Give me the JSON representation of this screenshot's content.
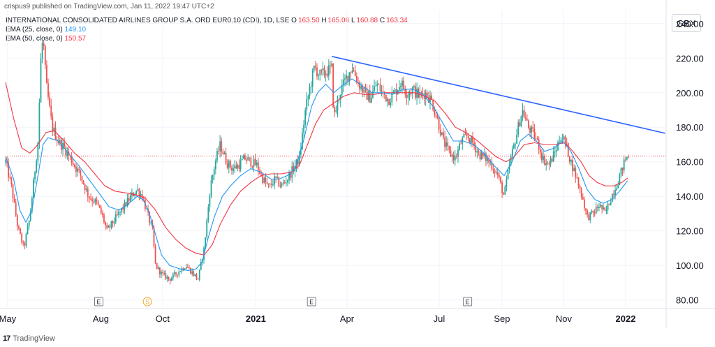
{
  "header": {
    "topline": "crispus9 published on TradingView.com, Jan 11, 2022 19:47 UTC+2",
    "instrument": "INTERNATIONAL CONSOLIDATED AIRLINES GROUP S.A. ORD EUR0.10 (CDI), 1D, LSE",
    "ohlc": {
      "o_label": "O",
      "o": "163.50",
      "h_label": "H",
      "h": "165.06",
      "l_label": "L",
      "l": "160.88",
      "c_label": "C",
      "c": "163.34"
    },
    "ema25_label": "EMA (25, close, 0)",
    "ema25_value": "149.10",
    "ema50_label": "EMA (50, close, 0)",
    "ema50_value": "150.57",
    "currency": "GBX"
  },
  "footer": {
    "brand": "TradingView",
    "logo": "17"
  },
  "colors": {
    "up": "#26a69a",
    "down": "#ef5350",
    "ema25": "#2196f3",
    "ema50": "#f23645",
    "trendline": "#2962ff",
    "priceline": "#f23645"
  },
  "chart_data": {
    "type": "candlestick",
    "currency": "GBX",
    "ylim": [
      75,
      248
    ],
    "y_ticks": [
      "240.00",
      "220.00",
      "200.00",
      "180.00",
      "160.00",
      "140.00",
      "120.00",
      "100.00",
      "80.00"
    ],
    "x_ticks": [
      {
        "label": "May",
        "day": 0
      },
      {
        "label": "Aug",
        "day": 92
      },
      {
        "label": "Oct",
        "day": 153
      },
      {
        "label": "2021",
        "day": 245
      },
      {
        "label": "Apr",
        "day": 335
      },
      {
        "label": "Jul",
        "day": 426
      },
      {
        "label": "Sep",
        "day": 488
      },
      {
        "label": "Nov",
        "day": 549
      },
      {
        "label": "2022",
        "day": 610
      }
    ],
    "last_price": 163.34,
    "price_series": [
      [
        -2,
        160
      ],
      [
        4,
        145
      ],
      [
        10,
        122
      ],
      [
        16,
        110
      ],
      [
        22,
        128
      ],
      [
        26,
        150
      ],
      [
        30,
        172
      ],
      [
        33,
        222
      ],
      [
        35,
        232
      ],
      [
        38,
        205
      ],
      [
        44,
        180
      ],
      [
        50,
        172
      ],
      [
        56,
        168
      ],
      [
        64,
        160
      ],
      [
        72,
        152
      ],
      [
        80,
        140
      ],
      [
        88,
        136
      ],
      [
        94,
        128
      ],
      [
        98,
        120
      ],
      [
        104,
        125
      ],
      [
        110,
        130
      ],
      [
        116,
        135
      ],
      [
        122,
        140
      ],
      [
        128,
        144
      ],
      [
        133,
        140
      ],
      [
        138,
        130
      ],
      [
        143,
        120
      ],
      [
        146,
        100
      ],
      [
        152,
        95
      ],
      [
        160,
        92
      ],
      [
        168,
        96
      ],
      [
        176,
        100
      ],
      [
        182,
        96
      ],
      [
        188,
        92
      ],
      [
        194,
        110
      ],
      [
        200,
        145
      ],
      [
        205,
        160
      ],
      [
        210,
        170
      ],
      [
        216,
        160
      ],
      [
        222,
        156
      ],
      [
        228,
        158
      ],
      [
        234,
        162
      ],
      [
        240,
        160
      ],
      [
        246,
        158
      ],
      [
        252,
        150
      ],
      [
        258,
        145
      ],
      [
        264,
        150
      ],
      [
        270,
        146
      ],
      [
        276,
        150
      ],
      [
        282,
        156
      ],
      [
        288,
        162
      ],
      [
        294,
        190
      ],
      [
        298,
        202
      ],
      [
        303,
        215
      ],
      [
        308,
        210
      ],
      [
        314,
        212
      ],
      [
        320,
        214
      ],
      [
        322,
        185
      ],
      [
        328,
        200
      ],
      [
        334,
        208
      ],
      [
        340,
        215
      ],
      [
        346,
        206
      ],
      [
        352,
        200
      ],
      [
        358,
        197
      ],
      [
        364,
        205
      ],
      [
        370,
        200
      ],
      [
        376,
        196
      ],
      [
        382,
        200
      ],
      [
        388,
        206
      ],
      [
        394,
        200
      ],
      [
        400,
        202
      ],
      [
        406,
        198
      ],
      [
        412,
        200
      ],
      [
        418,
        196
      ],
      [
        424,
        185
      ],
      [
        430,
        172
      ],
      [
        436,
        165
      ],
      [
        442,
        162
      ],
      [
        448,
        172
      ],
      [
        454,
        175
      ],
      [
        460,
        170
      ],
      [
        466,
        164
      ],
      [
        472,
        162
      ],
      [
        478,
        158
      ],
      [
        484,
        152
      ],
      [
        490,
        140
      ],
      [
        496,
        160
      ],
      [
        502,
        175
      ],
      [
        508,
        190
      ],
      [
        514,
        180
      ],
      [
        520,
        175
      ],
      [
        524,
        170
      ],
      [
        528,
        162
      ],
      [
        534,
        158
      ],
      [
        540,
        165
      ],
      [
        546,
        175
      ],
      [
        550,
        172
      ],
      [
        556,
        160
      ],
      [
        562,
        150
      ],
      [
        568,
        138
      ],
      [
        572,
        128
      ],
      [
        578,
        130
      ],
      [
        584,
        135
      ],
      [
        590,
        130
      ],
      [
        596,
        140
      ],
      [
        602,
        148
      ],
      [
        606,
        155
      ],
      [
        610,
        162
      ],
      [
        614,
        163.34
      ]
    ],
    "ema25_series": [
      [
        -2,
        163
      ],
      [
        6,
        150
      ],
      [
        12,
        132
      ],
      [
        18,
        125
      ],
      [
        24,
        132
      ],
      [
        30,
        152
      ],
      [
        35,
        170
      ],
      [
        40,
        174
      ],
      [
        50,
        172
      ],
      [
        60,
        165
      ],
      [
        70,
        158
      ],
      [
        80,
        150
      ],
      [
        90,
        142
      ],
      [
        100,
        134
      ],
      [
        110,
        132
      ],
      [
        120,
        136
      ],
      [
        128,
        140
      ],
      [
        134,
        138
      ],
      [
        140,
        130
      ],
      [
        146,
        118
      ],
      [
        152,
        106
      ],
      [
        160,
        100
      ],
      [
        170,
        98
      ],
      [
        178,
        97
      ],
      [
        186,
        98
      ],
      [
        192,
        102
      ],
      [
        198,
        116
      ],
      [
        204,
        128
      ],
      [
        212,
        140
      ],
      [
        220,
        146
      ],
      [
        230,
        152
      ],
      [
        240,
        156
      ],
      [
        250,
        154
      ],
      [
        260,
        150
      ],
      [
        268,
        150
      ],
      [
        276,
        152
      ],
      [
        284,
        156
      ],
      [
        292,
        172
      ],
      [
        300,
        192
      ],
      [
        306,
        200
      ],
      [
        314,
        205
      ],
      [
        322,
        200
      ],
      [
        330,
        204
      ],
      [
        340,
        208
      ],
      [
        350,
        204
      ],
      [
        360,
        200
      ],
      [
        370,
        200
      ],
      [
        380,
        199
      ],
      [
        390,
        202
      ],
      [
        400,
        202
      ],
      [
        410,
        199
      ],
      [
        420,
        192
      ],
      [
        430,
        182
      ],
      [
        440,
        172
      ],
      [
        450,
        172
      ],
      [
        460,
        170
      ],
      [
        470,
        165
      ],
      [
        480,
        158
      ],
      [
        490,
        152
      ],
      [
        498,
        160
      ],
      [
        506,
        172
      ],
      [
        514,
        176
      ],
      [
        522,
        172
      ],
      [
        530,
        166
      ],
      [
        540,
        168
      ],
      [
        548,
        172
      ],
      [
        556,
        166
      ],
      [
        564,
        156
      ],
      [
        572,
        144
      ],
      [
        580,
        138
      ],
      [
        588,
        136
      ],
      [
        596,
        138
      ],
      [
        604,
        143
      ],
      [
        612,
        149.1
      ]
    ],
    "ema50_series": [
      [
        -2,
        206
      ],
      [
        6,
        185
      ],
      [
        14,
        168
      ],
      [
        22,
        165
      ],
      [
        30,
        170
      ],
      [
        38,
        177
      ],
      [
        46,
        178
      ],
      [
        56,
        172
      ],
      [
        66,
        165
      ],
      [
        76,
        160
      ],
      [
        86,
        153
      ],
      [
        96,
        146
      ],
      [
        106,
        143
      ],
      [
        116,
        142
      ],
      [
        126,
        141
      ],
      [
        136,
        139
      ],
      [
        146,
        132
      ],
      [
        156,
        122
      ],
      [
        166,
        115
      ],
      [
        176,
        110
      ],
      [
        186,
        107
      ],
      [
        194,
        106
      ],
      [
        202,
        112
      ],
      [
        210,
        124
      ],
      [
        220,
        135
      ],
      [
        230,
        143
      ],
      [
        240,
        148
      ],
      [
        250,
        152
      ],
      [
        260,
        153
      ],
      [
        270,
        153
      ],
      [
        280,
        154
      ],
      [
        288,
        158
      ],
      [
        296,
        170
      ],
      [
        304,
        182
      ],
      [
        312,
        190
      ],
      [
        322,
        194
      ],
      [
        332,
        198
      ],
      [
        342,
        200
      ],
      [
        352,
        199
      ],
      [
        362,
        199
      ],
      [
        372,
        200
      ],
      [
        382,
        200
      ],
      [
        392,
        200
      ],
      [
        402,
        200
      ],
      [
        412,
        198
      ],
      [
        422,
        195
      ],
      [
        432,
        188
      ],
      [
        442,
        180
      ],
      [
        452,
        177
      ],
      [
        462,
        173
      ],
      [
        472,
        168
      ],
      [
        482,
        163
      ],
      [
        492,
        160
      ],
      [
        500,
        163
      ],
      [
        510,
        170
      ],
      [
        520,
        171
      ],
      [
        530,
        170
      ],
      [
        540,
        170
      ],
      [
        550,
        171
      ],
      [
        558,
        166
      ],
      [
        566,
        160
      ],
      [
        574,
        152
      ],
      [
        582,
        148
      ],
      [
        590,
        146
      ],
      [
        598,
        146
      ],
      [
        606,
        148
      ],
      [
        612,
        150.57
      ]
    ],
    "trendline": [
      [
        320,
        221
      ],
      [
        649,
        176.5
      ]
    ],
    "event_markers": [
      {
        "label": "E",
        "day": 90
      },
      {
        "label": "S",
        "day": 138
      },
      {
        "label": "E",
        "day": 300
      },
      {
        "label": "E",
        "day": 454
      }
    ],
    "grid": true,
    "legend_position": "top-left"
  }
}
